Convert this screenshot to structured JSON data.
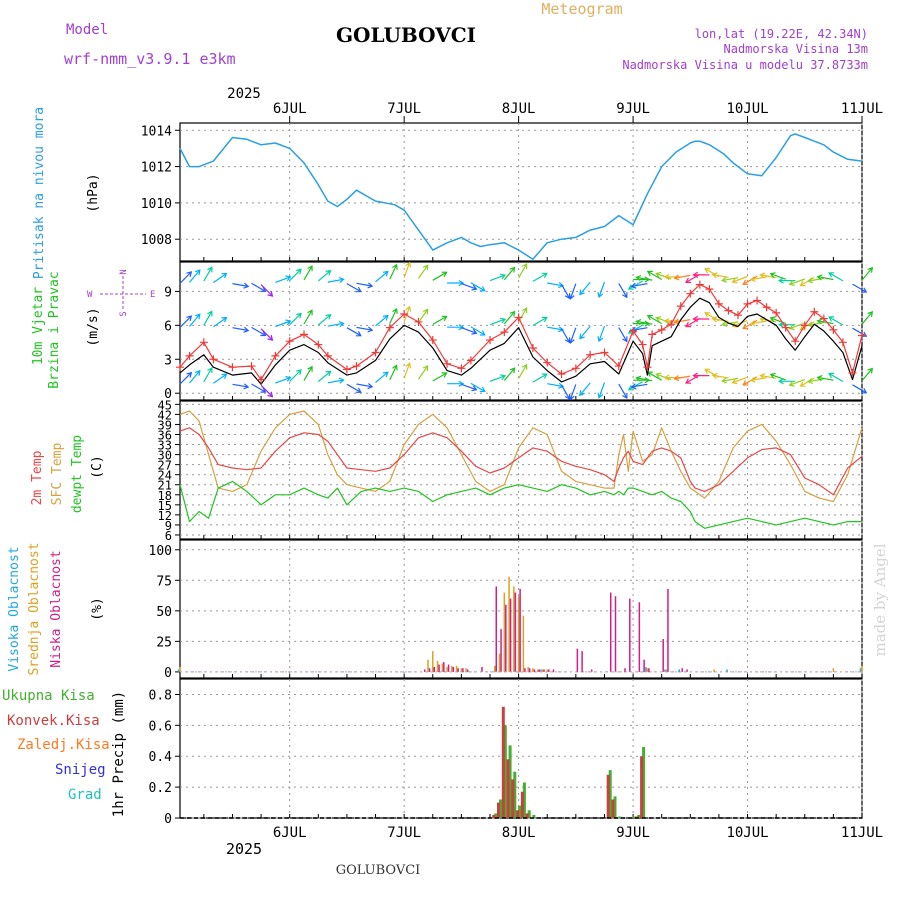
{
  "header": {
    "model_label": "Model",
    "model_name": "wrf-nmm_v3.9.1 e3km",
    "station": "GOLUBOVCI",
    "meteogram": "Meteogram",
    "lonlat": "lon,lat (19.22E, 42.34N)",
    "elevation": "Nadmorska Visina 13m",
    "model_elevation": "Nadmorska Visina u modelu 37.8733m",
    "year": "2025",
    "footer_station": "GOLUBOVCI",
    "watermark": "made by Angel"
  },
  "colors": {
    "pressure": "#2a9fe6",
    "wind_speed": "#000000",
    "wind_gust": "#f03a3a",
    "t2m": "#e84848",
    "tsfc": "#d9a040",
    "dewpoint": "#22c422",
    "high_cloud": "#22a8e0",
    "mid_cloud": "#e0a020",
    "low_cloud": "#d01e8a",
    "total_precip": "#44b030",
    "conv_precip": "#c84040",
    "frozen_precip": "#ff7a20",
    "snow": "#3030e0",
    "graupel": "#20c0c0",
    "wind_label": "#22c422",
    "compass": "#a040d0"
  },
  "time_axis": {
    "day_labels": [
      "6JUL",
      "7JUL",
      "8JUL",
      "9JUL",
      "10JUL",
      "11JUL"
    ],
    "start_hour": 13,
    "end_hour": 156
  },
  "chart_data": [
    {
      "type": "line",
      "name": "pressure",
      "title": "Pritisak na nivou mora",
      "ylabel": "(hPa)",
      "yticks": [
        "1008",
        "1010",
        "1012",
        "1014"
      ],
      "ylim": [
        1006.8,
        1014.4
      ],
      "x_hours": [
        13,
        15,
        17,
        20,
        24,
        27,
        30,
        33,
        36,
        39,
        42,
        44,
        46,
        48,
        50,
        54,
        58,
        60,
        63,
        66,
        69,
        72,
        74,
        76,
        78,
        81,
        84,
        87,
        90,
        93,
        96,
        99,
        102,
        105,
        108,
        111,
        114,
        117,
        120,
        121,
        122,
        123,
        124,
        127,
        129,
        132,
        135,
        138,
        141,
        142,
        144,
        146,
        148,
        150,
        153,
        156
      ],
      "series": [
        {
          "name": "MSLP",
          "values": [
            1013.0,
            1012.0,
            1012.0,
            1012.3,
            1013.6,
            1013.5,
            1013.2,
            1013.3,
            1013.0,
            1012.2,
            1011.0,
            1010.1,
            1009.8,
            1010.2,
            1010.7,
            1010.1,
            1009.9,
            1009.6,
            1008.5,
            1007.4,
            1007.8,
            1008.1,
            1007.8,
            1007.6,
            1007.7,
            1007.8,
            1007.4,
            1006.9,
            1007.8,
            1008.0,
            1008.1,
            1008.5,
            1008.7,
            1009.3,
            1008.8,
            1010.5,
            1012.0,
            1012.8,
            1013.3,
            1013.4,
            1013.4,
            1013.3,
            1013.2,
            1012.7,
            1012.2,
            1011.6,
            1011.5,
            1012.5,
            1013.7,
            1013.8,
            1013.6,
            1013.4,
            1013.2,
            1012.8,
            1012.4,
            1012.3
          ]
        }
      ]
    },
    {
      "type": "line",
      "name": "wind",
      "title": "10m Vjetar Brzina i Pravac",
      "ylabel": "(m/s)",
      "yticks": [
        "0",
        "3",
        "6",
        "9"
      ],
      "ylim": [
        -0.6,
        11.6
      ],
      "compass": {
        "n": "N",
        "s": "S",
        "w": "W",
        "e": "E"
      },
      "x_hours": [
        13,
        15,
        18,
        20,
        24,
        28,
        30,
        33,
        36,
        39,
        42,
        44,
        48,
        50,
        54,
        57,
        60,
        63,
        66,
        69,
        72,
        74,
        78,
        81,
        84,
        87,
        90,
        93,
        96,
        99,
        102,
        105,
        108,
        110,
        111,
        112,
        114,
        116,
        118,
        120,
        122,
        124,
        126,
        128,
        130,
        132,
        134,
        136,
        138,
        140,
        142,
        144,
        146,
        148,
        150,
        152,
        154,
        156
      ],
      "series": [
        {
          "name": "10m Wind Speed",
          "values": [
            1.8,
            2.5,
            3.4,
            2.3,
            1.6,
            1.8,
            0.8,
            2.5,
            3.8,
            4.3,
            3.6,
            2.7,
            1.6,
            1.8,
            2.9,
            4.8,
            6.0,
            5.4,
            4.0,
            2.0,
            1.6,
            2.2,
            3.8,
            4.4,
            5.8,
            3.2,
            2.0,
            1.0,
            1.5,
            2.6,
            2.8,
            1.7,
            4.6,
            3.5,
            1.6,
            4.2,
            4.6,
            5.0,
            6.5,
            7.6,
            8.4,
            8.0,
            6.7,
            6.2,
            5.9,
            6.8,
            7.0,
            6.5,
            6.0,
            4.8,
            3.8,
            5.0,
            6.1,
            5.5,
            4.6,
            3.6,
            1.2,
            4.2
          ]
        },
        {
          "name": "Gust",
          "values": [
            2.3,
            3.3,
            4.5,
            3.0,
            2.3,
            2.4,
            1.2,
            3.3,
            4.6,
            5.2,
            4.3,
            3.3,
            2.1,
            2.4,
            3.6,
            5.8,
            7.0,
            6.3,
            4.7,
            2.6,
            2.2,
            2.9,
            4.7,
            5.4,
            6.7,
            4.0,
            2.7,
            1.7,
            2.2,
            3.4,
            3.6,
            2.4,
            5.5,
            4.3,
            2.3,
            5.2,
            5.6,
            6.1,
            7.7,
            8.8,
            9.6,
            9.2,
            7.9,
            7.3,
            6.9,
            7.9,
            8.2,
            7.6,
            7.1,
            5.8,
            4.6,
            6.0,
            7.2,
            6.6,
            5.6,
            4.5,
            1.8,
            5.1
          ]
        }
      ],
      "directions_deg": [
        225,
        220,
        210,
        235,
        280,
        300,
        315,
        250,
        225,
        210,
        230,
        260,
        300,
        280,
        230,
        205,
        200,
        215,
        240,
        270,
        290,
        300,
        250,
        220,
        210,
        240,
        280,
        330,
        20,
        40,
        20,
        330,
        270,
        60,
        80,
        100,
        120,
        110,
        90,
        80,
        60,
        90,
        120,
        100,
        80,
        70,
        60,
        80,
        100,
        110,
        90,
        70,
        60,
        80,
        100,
        120,
        300,
        220
      ]
    },
    {
      "type": "line",
      "name": "temperature",
      "title_parts": [
        "2m Temp",
        "SFC Temp",
        "dewpt Temp"
      ],
      "ylabel": "(C)",
      "yticks": [
        "6",
        "9",
        "12",
        "15",
        "18",
        "21",
        "24",
        "27",
        "30",
        "33",
        "36",
        "39",
        "42",
        "45"
      ],
      "ylim": [
        4.8,
        46
      ],
      "x_hours": [
        13,
        15,
        17,
        19,
        21,
        24,
        27,
        30,
        33,
        36,
        39,
        42,
        44,
        46,
        48,
        51,
        54,
        57,
        60,
        63,
        66,
        69,
        72,
        75,
        78,
        81,
        84,
        87,
        90,
        93,
        96,
        99,
        102,
        104,
        105,
        106,
        107,
        108,
        110,
        112,
        114,
        116,
        118,
        120,
        121,
        123,
        126,
        129,
        132,
        135,
        138,
        141,
        144,
        147,
        150,
        153,
        156
      ],
      "series": [
        {
          "name": "2m Temp",
          "values": [
            37,
            38,
            36,
            32,
            27,
            26,
            25.5,
            26,
            31,
            35,
            36.5,
            36,
            34,
            30,
            26,
            25.5,
            25,
            26,
            30,
            35,
            36.5,
            35,
            31,
            26.5,
            24.5,
            26,
            29,
            32,
            31,
            28,
            26.5,
            25.5,
            24,
            22,
            26,
            29,
            31,
            28,
            27,
            31,
            32,
            31,
            29,
            22,
            20,
            19,
            21,
            25,
            29,
            31.5,
            32,
            30,
            23,
            21,
            18,
            26,
            29.5
          ]
        },
        {
          "name": "SFC Temp",
          "values": [
            42,
            43,
            40,
            30,
            20,
            19,
            21,
            31,
            38,
            42,
            43,
            39,
            30,
            24,
            21,
            20,
            19,
            22,
            33,
            39,
            42,
            38,
            30,
            22,
            19,
            21,
            32,
            38,
            36,
            25,
            22,
            21,
            20,
            20,
            30,
            36,
            25,
            37,
            28,
            30,
            38,
            31,
            25,
            20,
            19,
            17,
            22,
            32,
            37,
            39,
            34,
            27,
            19,
            17,
            16,
            24,
            38
          ]
        },
        {
          "name": "dewpt Temp",
          "values": [
            21,
            10,
            13,
            11,
            20,
            22,
            19,
            15,
            18,
            18,
            20,
            18,
            17,
            20,
            15,
            19,
            20,
            19,
            20,
            19,
            16,
            18,
            19,
            20,
            18,
            20,
            21,
            20,
            19,
            21,
            20,
            18,
            19,
            18,
            19,
            18,
            20,
            20,
            19,
            18,
            19,
            17,
            16,
            13,
            10,
            8,
            9,
            10,
            11,
            10,
            9,
            10,
            11,
            10,
            9,
            10,
            10
          ]
        }
      ]
    },
    {
      "type": "bar",
      "name": "clouds",
      "title_parts": [
        "Visoka Oblacnost",
        "Srednja Oblacnost",
        "Niska Oblacnost"
      ],
      "ylabel": "(%)",
      "yticks": [
        "0",
        "25",
        "50",
        "75",
        "100"
      ],
      "ylim": [
        -5,
        108
      ],
      "series": [
        {
          "name": "Visoka Oblacnost",
          "x_hours": [
            13,
            89,
            111,
            115,
            118,
            128,
            156
          ],
          "values": [
            2,
            2,
            4,
            2,
            2,
            2,
            3
          ]
        },
        {
          "name": "Srednja Oblacnost",
          "x_hours": [
            13,
            65,
            66,
            67,
            68,
            69,
            70,
            71,
            72,
            73,
            79,
            80,
            81,
            82,
            83,
            84,
            85,
            86,
            87,
            88,
            89,
            90,
            111,
            115,
            125,
            150,
            156
          ],
          "values": [
            4,
            10,
            17,
            9,
            7,
            4,
            5,
            5,
            3,
            3,
            5,
            15,
            65,
            78,
            70,
            62,
            46,
            4,
            3,
            2,
            2,
            2,
            3,
            2,
            2,
            3,
            5
          ]
        },
        {
          "name": "Niska Oblacnost",
          "x_hours": [
            64,
            65,
            66,
            67,
            68,
            69,
            70,
            71,
            72,
            73,
            76,
            79,
            80,
            81,
            82,
            83,
            84,
            85,
            86,
            87,
            88,
            89,
            90,
            91,
            96,
            97,
            99,
            103,
            104,
            106,
            107,
            109,
            110,
            111,
            114,
            115,
            118,
            119
          ],
          "values": [
            2,
            3,
            4,
            6,
            8,
            6,
            4,
            3,
            3,
            2,
            4,
            70,
            35,
            55,
            60,
            65,
            68,
            3,
            3,
            2,
            2,
            2,
            2,
            2,
            19,
            17,
            2,
            65,
            62,
            3,
            60,
            57,
            10,
            3,
            27,
            68,
            3,
            2
          ]
        }
      ]
    },
    {
      "type": "bar",
      "name": "precipitation",
      "ylabel": "1hr Precip (mm)",
      "legend": [
        "Ukupna Kisa",
        "Konvek.Kisa",
        "Zaledj.Kisa",
        "Snijeg",
        "Grad"
      ],
      "yticks": [
        "0",
        "0.2",
        "0.4",
        "0.6",
        "0.8"
      ],
      "ylim": [
        0,
        0.9
      ],
      "series": [
        {
          "name": "Ukupna Kisa",
          "x_hours": [
            79,
            80,
            81,
            82,
            83,
            84,
            85,
            86,
            87,
            103,
            104,
            105,
            108,
            109,
            110
          ],
          "values": [
            0.03,
            0.12,
            0.6,
            0.47,
            0.3,
            0.08,
            0.23,
            0.05,
            0.02,
            0.31,
            0.14,
            0.01,
            0.01,
            0.02,
            0.46
          ]
        },
        {
          "name": "Konvek.Kisa",
          "x_hours": [
            79,
            80,
            81,
            82,
            83,
            84,
            85,
            86,
            103,
            104,
            109,
            110
          ],
          "values": [
            0.02,
            0.1,
            0.72,
            0.38,
            0.25,
            0.05,
            0.17,
            0.03,
            0.28,
            0.12,
            0.01,
            0.4
          ]
        }
      ]
    }
  ]
}
